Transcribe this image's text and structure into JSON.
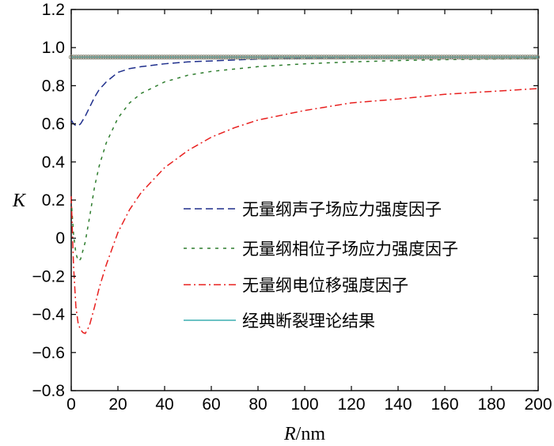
{
  "chart_data": {
    "type": "line",
    "xlabel_var": "R",
    "xlabel_unit": "/nm",
    "ylabel": "K",
    "xlim": [
      0,
      200
    ],
    "ylim": [
      -0.8,
      1.2
    ],
    "x_ticks": [
      0,
      20,
      40,
      60,
      80,
      100,
      120,
      140,
      160,
      180,
      200
    ],
    "y_ticks": [
      -0.8,
      -0.6,
      -0.4,
      -0.2,
      0,
      0.2,
      0.4,
      0.6,
      0.8,
      1.0,
      1.2
    ],
    "y_tick_labels": [
      "−0.8",
      "−0.6",
      "−0.4",
      "−0.2",
      "0",
      "0.2",
      "0.4",
      "0.6",
      "0.8",
      "1.0",
      "1.2"
    ],
    "grid": false,
    "legend_position": "center-right",
    "series": [
      {
        "name": "无量纲声子场应力强度因子",
        "color": "#1f2f8c",
        "dash": "dashed",
        "x": [
          0,
          1,
          2,
          3,
          4,
          6,
          8,
          10,
          12,
          15,
          20,
          25,
          30,
          40,
          50,
          60,
          80,
          100,
          120,
          140,
          160,
          180,
          200
        ],
        "y": [
          0.62,
          0.6,
          0.59,
          0.59,
          0.6,
          0.64,
          0.69,
          0.74,
          0.78,
          0.82,
          0.87,
          0.89,
          0.9,
          0.915,
          0.925,
          0.93,
          0.94,
          0.945,
          0.947,
          0.948,
          0.949,
          0.949,
          0.95
        ]
      },
      {
        "name": "无量纲相位子场应力强度因子",
        "color": "#2e7d2e",
        "dash": "short-dashed",
        "x": [
          0,
          1,
          2,
          3,
          4,
          6,
          8,
          10,
          12,
          15,
          20,
          25,
          30,
          40,
          50,
          60,
          80,
          100,
          120,
          140,
          160,
          180,
          200
        ],
        "y": [
          0.2,
          0.02,
          -0.08,
          -0.12,
          -0.11,
          -0.02,
          0.12,
          0.27,
          0.38,
          0.5,
          0.63,
          0.71,
          0.76,
          0.82,
          0.855,
          0.875,
          0.9,
          0.915,
          0.925,
          0.932,
          0.937,
          0.94,
          0.943
        ]
      },
      {
        "name": "无量纲电位移强度因子",
        "color": "#e8201f",
        "dash": "dash-dot",
        "x": [
          0,
          1,
          2,
          3,
          4,
          5,
          6,
          7,
          8,
          10,
          12,
          15,
          20,
          25,
          30,
          40,
          50,
          60,
          70,
          80,
          100,
          120,
          140,
          160,
          180,
          200
        ],
        "y": [
          0.22,
          -0.15,
          -0.36,
          -0.45,
          -0.48,
          -0.495,
          -0.5,
          -0.48,
          -0.45,
          -0.36,
          -0.26,
          -0.14,
          0.03,
          0.15,
          0.24,
          0.37,
          0.46,
          0.53,
          0.58,
          0.62,
          0.67,
          0.71,
          0.73,
          0.755,
          0.77,
          0.785
        ]
      },
      {
        "name": "经典断裂理论结果",
        "color": "#3aaeb0",
        "dash": "solid",
        "markers": true,
        "x": [
          0,
          200
        ],
        "y": [
          0.95,
          0.95
        ]
      }
    ]
  }
}
